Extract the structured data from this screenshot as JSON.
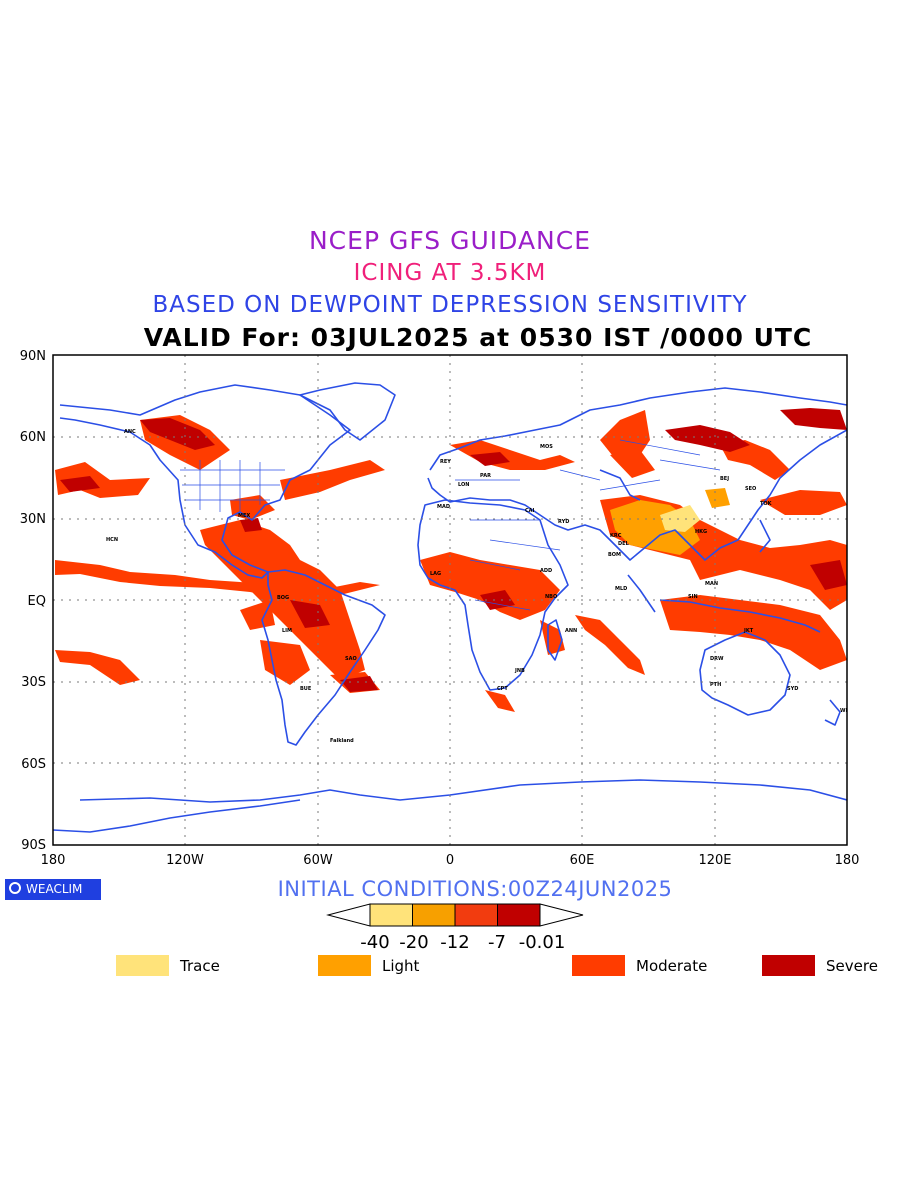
{
  "titles": {
    "line1": "NCEP GFS GUIDANCE",
    "line2": "ICING AT 3.5KM",
    "line3": "BASED ON DEWPOINT DEPRESSION SENSITIVITY",
    "line4": "VALID For: 03JUL2025 at 0530 IST /0000 UTC"
  },
  "axes": {
    "lat_labels": [
      "90N",
      "60N",
      "30N",
      "EQ",
      "30S",
      "60S",
      "90S"
    ],
    "lon_labels": [
      "180",
      "120W",
      "60W",
      "0",
      "60E",
      "120E",
      "180"
    ]
  },
  "initial_conditions": "INITIAL CONDITIONS:00Z24JUN2025",
  "logo_text": "WEACLIM",
  "colorbar": {
    "tick_labels": [
      "-40",
      "-20",
      "-12",
      "-7",
      "-0.01"
    ],
    "colors": [
      "#ffe37a",
      "#f7a000",
      "#f23c0f",
      "#c00000"
    ]
  },
  "legend": [
    {
      "label": "Trace",
      "color": "#ffe37a"
    },
    {
      "label": "Light",
      "color": "#ffa000"
    },
    {
      "label": "Moderate",
      "color": "#ff3c00"
    },
    {
      "label": "Severe",
      "color": "#c00000"
    }
  ],
  "city_labels": [
    "ANC",
    "HCN",
    "MEX",
    "BOG",
    "LIM",
    "SAO",
    "BUE",
    "Falkland",
    "REY",
    "MAD",
    "LON",
    "PAR",
    "MOS",
    "CAI",
    "RYD",
    "KRC",
    "DEL",
    "BOM",
    "MLD",
    "SIN",
    "TOK",
    "SEO",
    "BEJ",
    "HKG",
    "MAN",
    "JKT",
    "DRW",
    "PTH",
    "SYD",
    "WLT",
    "LAG",
    "NBO",
    "ADD",
    "CPT",
    "JNB",
    "ANN"
  ],
  "colors": {
    "coastline": "#2b4fe6",
    "moderate": "#ff3c00",
    "severe": "#c00000",
    "light": "#ffa000",
    "trace": "#ffe37a"
  }
}
